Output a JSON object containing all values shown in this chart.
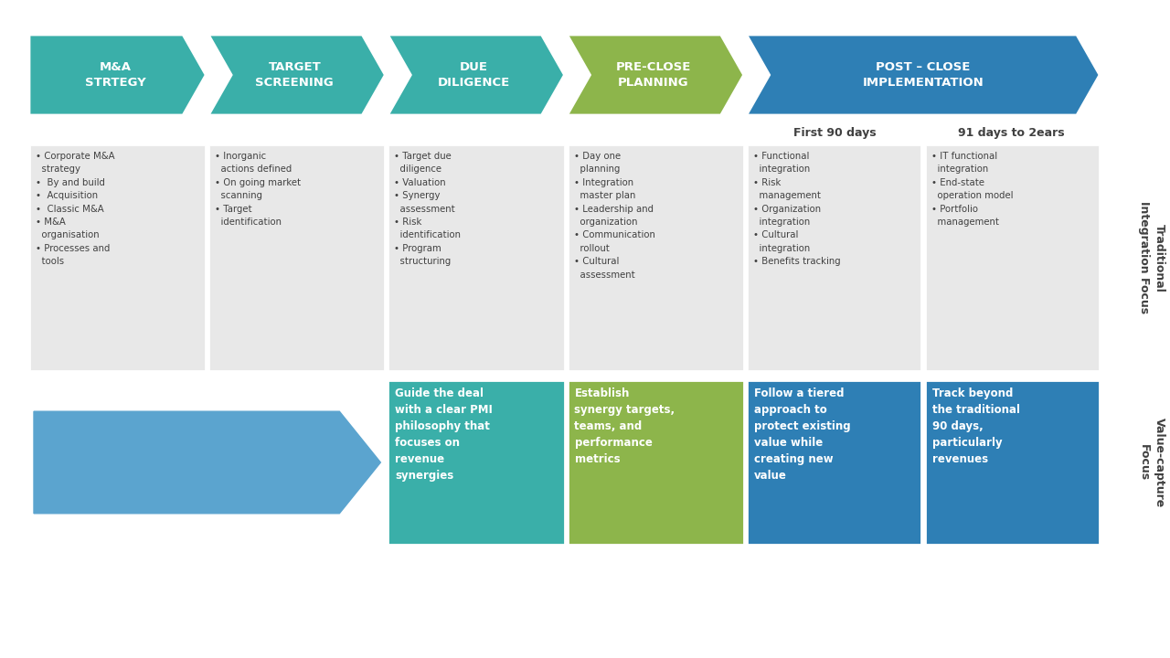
{
  "bg_color": "#ffffff",
  "arrow_labels": [
    "M&A\nSTRTEGY",
    "TARGET\nSCREENING",
    "DUE\nDILIGENCE",
    "PRE-CLOSE\nPLANNING",
    "POST – CLOSE\nIMPLEMENTATION"
  ],
  "arrow_colors_list": [
    "#3aafa9",
    "#3aafa9",
    "#3aafa9",
    "#8db54b",
    "#2e7fb5"
  ],
  "sub_labels": [
    "First 90 days",
    "91 days to 2ears"
  ],
  "top_box_items": [
    "• Corporate M&A\n  strategy\n•  By and build\n•  Acquisition\n•  Classic M&A\n• M&A\n  organisation\n• Processes and\n  tools",
    "• Inorganic\n  actions defined\n• On going market\n  scanning\n• Target\n  identification",
    "• Target due\n  diligence\n• Valuation\n• Synergy\n  assessment\n• Risk\n  identification\n• Program\n  structuring",
    "• Day one\n  planning\n• Integration\n  master plan\n• Leadership and\n  organization\n• Communication\n  rollout\n• Cultural\n  assessment",
    "• Functional\n  integration\n• Risk\n  management\n• Organization\n  integration\n• Cultural\n  integration\n• Benefits tracking",
    "• IT functional\n  integration\n• End-state\n  operation model\n• Portfolio\n  management"
  ],
  "bottom_box_texts": [
    "Guide the deal\nwith a clear PMI\nphilosophy that\nfocuses on\nrevenue\nsynergies",
    "Establish\nsynergy targets,\nteams, and\nperformance\nmetrics",
    "Follow a tiered\napproach to\nprotect existing\nvalue while\ncreating new\nvalue",
    "Track beyond\nthe traditional\n90 days,\nparticularly\nrevenues"
  ],
  "bottom_box_colors": [
    "#3aafa9",
    "#8db54b",
    "#2e7fb5",
    "#2e7fb5"
  ],
  "side_label_top": "Traditional\nIntegration Focus",
  "side_label_bottom": "Value-capture\nFocus",
  "text_color_dark": "#404040",
  "blue_arrow_color": "#5ba4cf",
  "gray_box_color": "#e8e8e8",
  "white": "#ffffff"
}
